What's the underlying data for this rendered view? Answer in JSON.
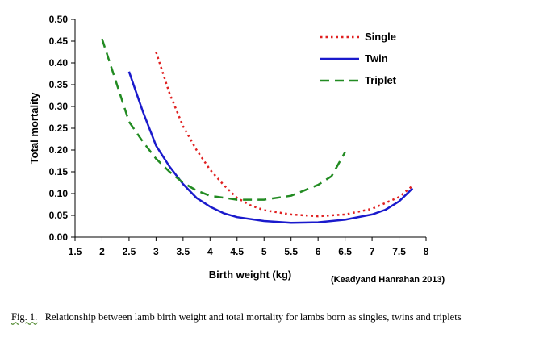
{
  "chart_data": {
    "type": "line",
    "title": "",
    "xlabel": "Birth weight (kg)",
    "ylabel": "Total mortality",
    "xlim": [
      1.5,
      8
    ],
    "ylim": [
      0,
      0.5
    ],
    "x_ticks": [
      "1.5",
      "2",
      "2.5",
      "3",
      "3.5",
      "4",
      "4.5",
      "5",
      "5.5",
      "6",
      "6.5",
      "7",
      "7.5",
      "8"
    ],
    "y_ticks": [
      "0.00",
      "0.05",
      "0.10",
      "0.15",
      "0.20",
      "0.25",
      "0.30",
      "0.35",
      "0.40",
      "0.45",
      "0.50"
    ],
    "grid": false,
    "legend_position": "top-right",
    "series": [
      {
        "name": "Single",
        "color": "#e02020",
        "style": "dotted",
        "points": [
          [
            3.0,
            0.425
          ],
          [
            3.25,
            0.33
          ],
          [
            3.5,
            0.255
          ],
          [
            3.75,
            0.2
          ],
          [
            4.0,
            0.155
          ],
          [
            4.25,
            0.12
          ],
          [
            4.5,
            0.09
          ],
          [
            4.75,
            0.073
          ],
          [
            5.0,
            0.062
          ],
          [
            5.5,
            0.052
          ],
          [
            6.0,
            0.048
          ],
          [
            6.5,
            0.052
          ],
          [
            7.0,
            0.065
          ],
          [
            7.5,
            0.092
          ],
          [
            7.75,
            0.118
          ]
        ]
      },
      {
        "name": "Twin",
        "color": "#1a1acc",
        "style": "solid",
        "points": [
          [
            2.5,
            0.38
          ],
          [
            2.75,
            0.29
          ],
          [
            3.0,
            0.21
          ],
          [
            3.25,
            0.162
          ],
          [
            3.5,
            0.122
          ],
          [
            3.75,
            0.09
          ],
          [
            4.0,
            0.07
          ],
          [
            4.25,
            0.055
          ],
          [
            4.5,
            0.046
          ],
          [
            5.0,
            0.037
          ],
          [
            5.5,
            0.033
          ],
          [
            6.0,
            0.034
          ],
          [
            6.5,
            0.04
          ],
          [
            7.0,
            0.052
          ],
          [
            7.25,
            0.063
          ],
          [
            7.5,
            0.082
          ],
          [
            7.75,
            0.112
          ]
        ]
      },
      {
        "name": "Triplet",
        "color": "#228b22",
        "style": "dashed",
        "points": [
          [
            2.0,
            0.455
          ],
          [
            2.25,
            0.36
          ],
          [
            2.5,
            0.265
          ],
          [
            2.75,
            0.22
          ],
          [
            3.0,
            0.18
          ],
          [
            3.25,
            0.15
          ],
          [
            3.5,
            0.125
          ],
          [
            3.75,
            0.107
          ],
          [
            4.0,
            0.095
          ],
          [
            4.5,
            0.086
          ],
          [
            5.0,
            0.086
          ],
          [
            5.5,
            0.095
          ],
          [
            6.0,
            0.12
          ],
          [
            6.25,
            0.14
          ],
          [
            6.5,
            0.195
          ]
        ]
      }
    ],
    "annotation": "(Keadyand Hanrahan 2013)"
  },
  "caption": {
    "fig_label": "Fig. 1.",
    "text": "Relationship between lamb birth weight and total mortality for lambs born as singles, twins and triplets"
  }
}
